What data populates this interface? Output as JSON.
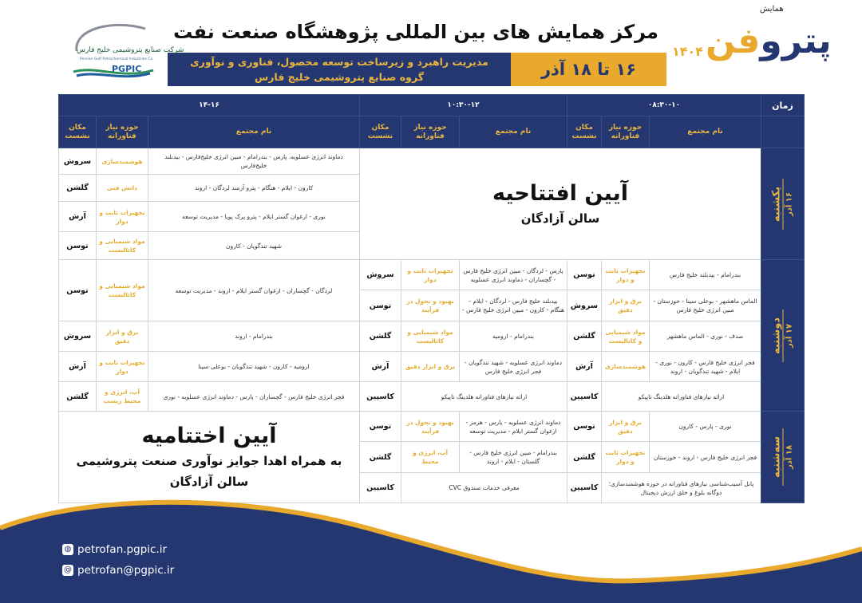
{
  "header": {
    "title": "مرکز همایش های بین المللی پژوهشگاه صنعت نفت",
    "subtitle_line1": "مدیریت راهبرد و زیرساخت توسعه محصول، فناوری و نوآوری",
    "subtitle_line2": "گروه صنایع پتروشیمی خلیج فارس",
    "dates": "۱۶ تا ۱۸ آذر"
  },
  "event_logo": {
    "label": "همایش",
    "name_part1": "پترو",
    "name_part2": "فن",
    "year": "۱۴۰۴"
  },
  "company_logo": {
    "name_fa": "شرکت صنایع پتروشیمی خلیج فارس",
    "name_en": "Persian Gulf Petrochemical Industries Co.",
    "abbr": "PGPIC"
  },
  "table": {
    "time_label": "زمان",
    "slots": [
      "۰۸:۳۰-۱۰",
      "۱۰:۳۰-۱۲",
      "۱۴-۱۶"
    ],
    "col_name": "نام مجتمع",
    "col_area": "حوزه نیاز فناورانه",
    "col_place": "مکان نشست"
  },
  "opening": {
    "title": "آیین افتتاحیه",
    "hall": "سالن آزادگان"
  },
  "closing": {
    "title": "آیین اختتامیه",
    "subtitle": "به همراه اهدا جوایز نوآوری صنعت پتروشیمی",
    "hall": "سالن آزادگان"
  },
  "days": [
    {
      "day": "یکشنبه",
      "date": "۱۶ آذر",
      "b1": [],
      "b2": [],
      "b3": [
        {
          "name": "دماوند انرژی عسلویه، پارس - بندرامام - مبین انرژی خلیج‌فارس - بیدبلند خلیج‌فارس",
          "area": "هوشمندسازی",
          "place": "سروش"
        },
        {
          "name": "کارون - ایلام - هنگام - پترو آرمند لردگان - اروند",
          "area": "دانش فنی",
          "place": "گلشن"
        },
        {
          "name": "نوری - ارغوان گستر ایلام - پترو پرک پویا - مدیریت توسعه",
          "area": "تجهیزات ثابت و دوار",
          "place": "آرش"
        },
        {
          "name": "شهید تندگویان - کارون",
          "area": "مواد شیمیایی و کاتالیست",
          "place": "توسن"
        }
      ]
    },
    {
      "day": "دوشنبه",
      "date": "۱۷ آذر",
      "b1": [
        {
          "name": "بندرامام - بیدبلند خلیج فارس",
          "area": "تجهیزات ثابت و دوار",
          "place": "توسن"
        },
        {
          "name": "الماس ماهشهر - بوعلی سینا - خوزستان - مبین انرژی خلیج فارس",
          "area": "برق و ابزار دقیق",
          "place": "سروش"
        },
        {
          "name": "صدف - نوری - الماس ماهشهر",
          "area": "مواد شیمیایی و کاتالیست",
          "place": "گلشن"
        },
        {
          "name": "فجر انرژی خلیج فارس - کارون - نوری - ایلام - شهید تندگویان - اروند",
          "area": "هوشمندسازی",
          "place": "آرش"
        },
        {
          "name": "ارائه نیازهای فناورانه هلدینگ تاپیکو",
          "area": "",
          "place": "کاسپین"
        }
      ],
      "b2": [
        {
          "name": "پارس - لردگان - مبین انرژی خلیج فارس - گچساران - دماوند انرژی عسلویه",
          "area": "تجهیزات ثابت و دوار",
          "place": "سروش"
        },
        {
          "name": "بیدبلند خلیج فارس - لردگان - ایلام - هنگام - کارون - مبین انرژی خلیج فارس -",
          "area": "بهبود و تحول در فرآیند",
          "place": "توسن"
        },
        {
          "name": "بندرامام - ارومیه",
          "area": "مواد شیمیایی و کاتالیست",
          "place": "گلشن"
        },
        {
          "name": "دماوند انرژی عسلویه - شهید تندگویان - فجر انرژی خلیج فارس",
          "area": "برق و ابزار دقیق",
          "place": "آرش"
        },
        {
          "name": "ارائه نیازهای فناورانه هلدینگ تاپیکو",
          "area": "",
          "place": "کاسپین"
        }
      ],
      "b3": [
        {
          "name": "لردگان - گچساران - ارغوان گستر ایلام - اروند - مدیریت توسعه",
          "area": "مواد شیمیایی و کاتالیست",
          "place": "توسن"
        },
        {
          "name": "بندرامام - اروند",
          "area": "برق و ابزار دقیق",
          "place": "سروش"
        },
        {
          "name": "ارومیه - کارون - شهید تندگویان - بوعلی سینا",
          "area": "تجهیزات ثابت و دوار",
          "place": "آرش"
        },
        {
          "name": "فجر انرژی خلیج فارس - گچساران - پارس - دماوند انرژی عسلویه - نوری",
          "area": "آب، انرژی و محیط زیست",
          "place": "گلشن"
        }
      ]
    },
    {
      "day": "سه‌شنبه",
      "date": "۱۸ آذر",
      "b1": [
        {
          "name": "نوری - پارس - کارون",
          "area": "برق و ابزار دقیق",
          "place": "توسن"
        },
        {
          "name": "فجر انرژی خلیج فارس - اروند - خوزستان",
          "area": "تجهیزات ثابت و دوار",
          "place": "گلشن"
        },
        {
          "name": "پانل آسیب‌شناسی نیازهای فناورانه در حوزه هوشمندسازی؛ دوگانه بلوغ و خلق ارزش دیجیتال",
          "area": "",
          "place": "کاسپین"
        }
      ],
      "b2": [
        {
          "name": "دماوند انرژی عسلویه - پارس - هرمز - ارغوان گستر ایلام - مدیریت توسعه",
          "area": "بهبود و تحول در فرآیند",
          "place": "توسن"
        },
        {
          "name": "بندرامام - مبین انرژی خلیج فارس - گلستان - ایلام - اروند",
          "area": "آب، انرژی و محیط",
          "place": "گلشن"
        },
        {
          "name": "معرفی خدمات صندوق CVC",
          "area": "",
          "place": "کاسپین"
        }
      ],
      "b3": []
    }
  ],
  "footer": {
    "website": "petrofan.pgpic.ir",
    "email": "petrofan@pgpic.ir",
    "website_icon": "globe-icon",
    "email_icon": "mail-icon"
  },
  "colors": {
    "navy": "#243771",
    "gold": "#e9a92c",
    "area_text": "#e3ac2e"
  }
}
